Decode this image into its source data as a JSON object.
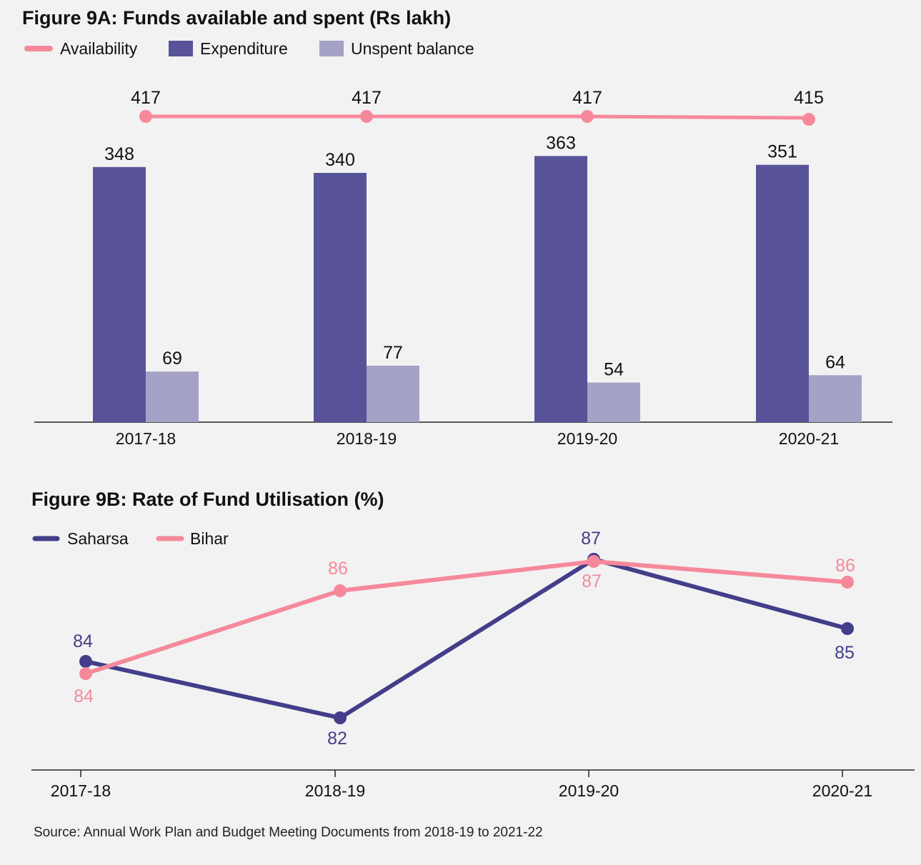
{
  "colors": {
    "availability": "#f5899b",
    "expenditure": "#585399",
    "unspent": "#a4a2c6",
    "saharsa": "#423e8a",
    "bihar": "#f5899b",
    "axis": "#222222"
  },
  "source": "Source: Annual Work Plan and Budget Meeting Documents from 2018-19 to 2021-22",
  "chart_data": [
    {
      "type": "bar",
      "title": "Figure 9A: Funds available and spent (Rs lakh)",
      "categories": [
        "2017-18",
        "2018-19",
        "2019-20",
        "2020-21"
      ],
      "series": [
        {
          "name": "Availability",
          "kind": "line",
          "values": [
            417,
            417,
            417,
            415
          ]
        },
        {
          "name": "Expenditure",
          "kind": "bar",
          "values": [
            348,
            340,
            363,
            351
          ]
        },
        {
          "name": "Unspent balance",
          "kind": "bar",
          "values": [
            69,
            77,
            54,
            64
          ]
        }
      ],
      "ylim": [
        0,
        417
      ],
      "legend": "top-left",
      "grid": false
    },
    {
      "type": "line",
      "title": "Figure 9B: Rate of Fund Utilisation (%)",
      "categories": [
        "2017-18",
        "2018-19",
        "2019-20",
        "2020-21"
      ],
      "series": [
        {
          "name": "Saharsa",
          "values": [
            84,
            82,
            87,
            85
          ]
        },
        {
          "name": "Bihar",
          "values": [
            84,
            86,
            87,
            86
          ]
        }
      ],
      "legend": "top-left",
      "grid": false
    }
  ]
}
